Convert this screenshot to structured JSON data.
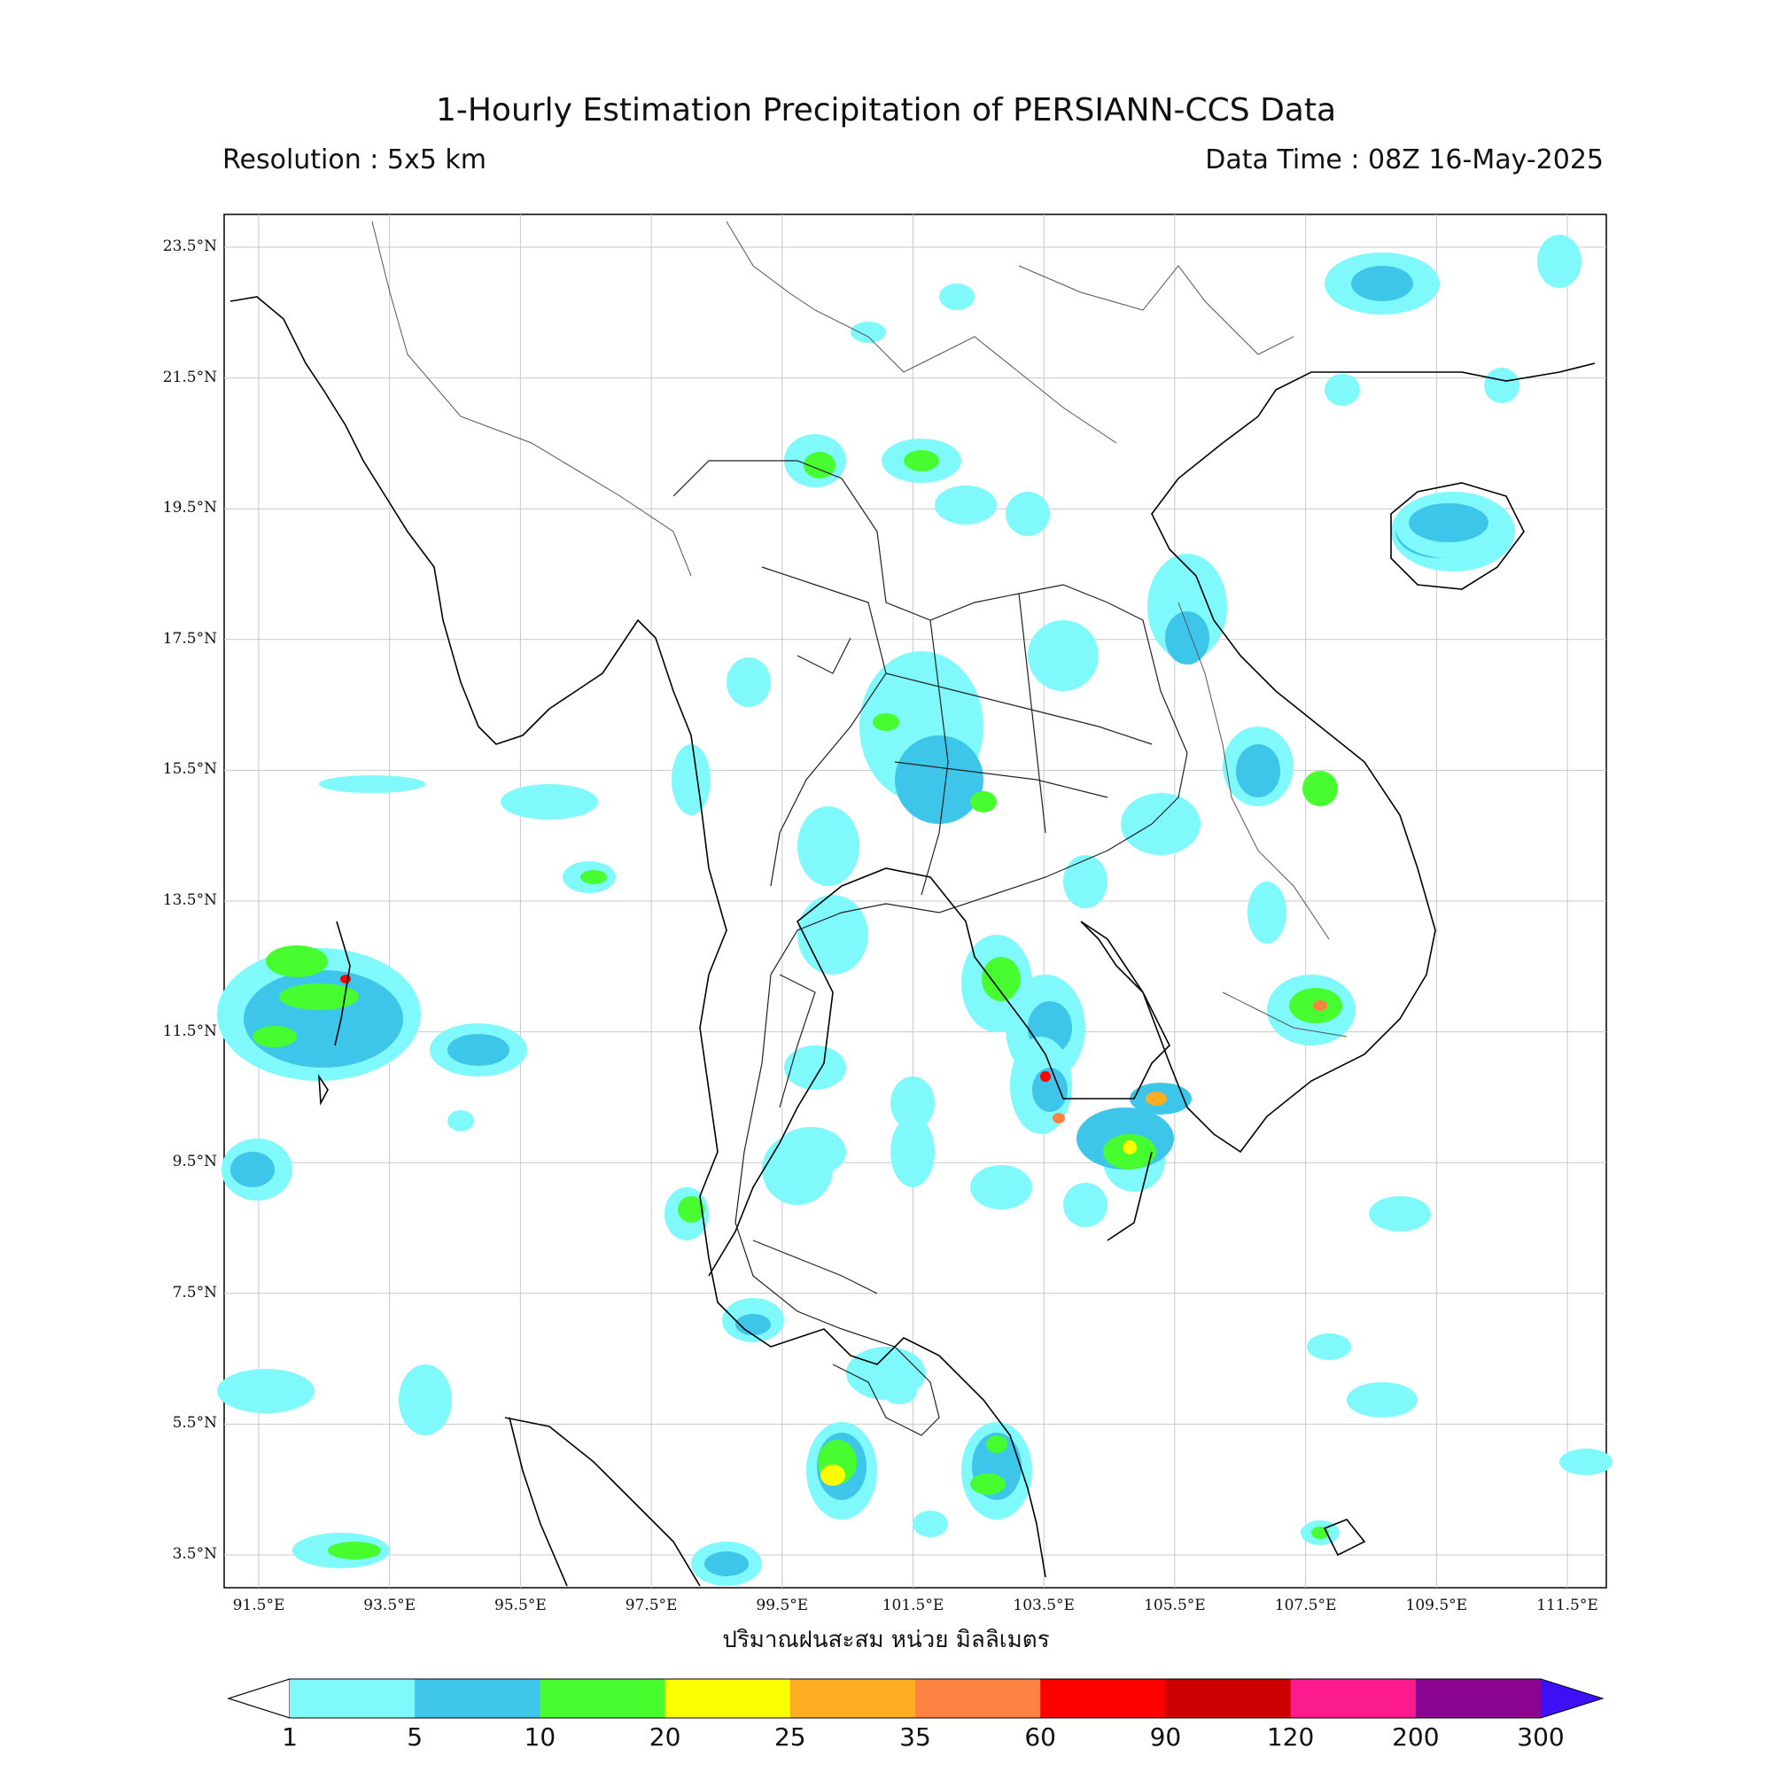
{
  "header": {
    "title": "1-Hourly Estimation Precipitation of PERSIANN-CCS Data",
    "resolution": "Resolution : 5x5 km",
    "data_time": "Data Time : 08Z 16-May-2025"
  },
  "axes": {
    "lat_labels": [
      "23.5°N",
      "21.5°N",
      "19.5°N",
      "17.5°N",
      "15.5°N",
      "13.5°N",
      "11.5°N",
      "9.5°N",
      "7.5°N",
      "5.5°N",
      "3.5°N"
    ],
    "lon_labels": [
      "91.5°E",
      "93.5°E",
      "95.5°E",
      "97.5°E",
      "99.5°E",
      "101.5°E",
      "103.5°E",
      "105.5°E",
      "107.5°E",
      "109.5°E",
      "111.5°E"
    ]
  },
  "colorbar": {
    "unit_label": "ปริมาณฝนสะสม หน่วย มิลลิเมตร",
    "ticks": [
      "1",
      "5",
      "10",
      "20",
      "25",
      "35",
      "60",
      "90",
      "120",
      "200",
      "300"
    ],
    "colors": [
      "#7ff9fc",
      "#3ec5ea",
      "#48fd2f",
      "#fdfd01",
      "#fdad21",
      "#fd8242",
      "#fd0000",
      "#cc0000",
      "#fc1b8f",
      "#8a0590"
    ],
    "under_color": "#ffffff",
    "over_color": "#3d10f6"
  }
}
